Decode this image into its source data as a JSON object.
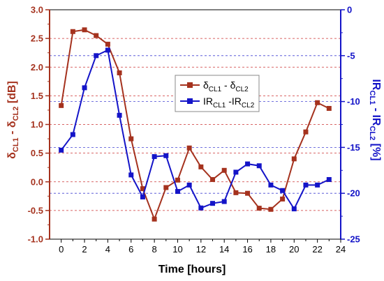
{
  "colors": {
    "series1": "#a5321e",
    "series2": "#1414c8",
    "left_axis": "#a5321e",
    "right_axis": "#1414c8",
    "left_grid": "#c00000",
    "right_grid": "#1414c8"
  },
  "chart_data": {
    "type": "line",
    "xlabel": "Time [hours]",
    "xlim": [
      -1,
      24
    ],
    "xticks": [
      0,
      2,
      4,
      6,
      8,
      10,
      12,
      14,
      16,
      18,
      20,
      22,
      24
    ],
    "left_axis": {
      "ylim": [
        -1.0,
        3.0
      ],
      "ticks": [
        "-1.0",
        "-0.5",
        "0.0",
        "0.5",
        "1.0",
        "1.5",
        "2.0",
        "2.5",
        "3.0"
      ],
      "grid_values": [
        -0.5,
        0.0,
        0.5,
        1.0,
        1.5,
        2.0,
        2.5,
        3.0
      ]
    },
    "right_axis": {
      "ylim": [
        -25,
        0
      ],
      "ticks": [
        "-25",
        "-20",
        "-15",
        "-10",
        "-5",
        "0"
      ],
      "grid_values": [
        -5,
        -10,
        -15,
        -20
      ]
    },
    "legend_position": "center-right",
    "series": [
      {
        "axis": "left",
        "marker": "square",
        "x": [
          0,
          1,
          2,
          3,
          4,
          5,
          6,
          7,
          8,
          9,
          10,
          11,
          12,
          13,
          14,
          15,
          16,
          17,
          18,
          19,
          20,
          21,
          22,
          23
        ],
        "values": [
          1.33,
          2.62,
          2.65,
          2.55,
          2.4,
          1.9,
          0.75,
          -0.12,
          -0.65,
          -0.1,
          0.03,
          0.59,
          0.26,
          0.04,
          0.2,
          -0.19,
          -0.2,
          -0.46,
          -0.48,
          -0.3,
          0.4,
          0.87,
          1.38,
          1.28
        ]
      },
      {
        "axis": "right",
        "marker": "square",
        "x": [
          0,
          1,
          2,
          3,
          4,
          5,
          6,
          7,
          8,
          9,
          10,
          11,
          12,
          13,
          14,
          15,
          16,
          17,
          18,
          19,
          20,
          21,
          22,
          23
        ],
        "values": [
          -15.3,
          -13.6,
          -8.5,
          -5.0,
          -4.4,
          -11.5,
          -18.0,
          -20.4,
          -16.0,
          -15.9,
          -19.8,
          -19.1,
          -21.6,
          -21.1,
          -20.9,
          -17.7,
          -16.8,
          -17.0,
          -19.1,
          -19.7,
          -21.7,
          -19.1,
          -19.1,
          -18.5
        ]
      }
    ]
  }
}
